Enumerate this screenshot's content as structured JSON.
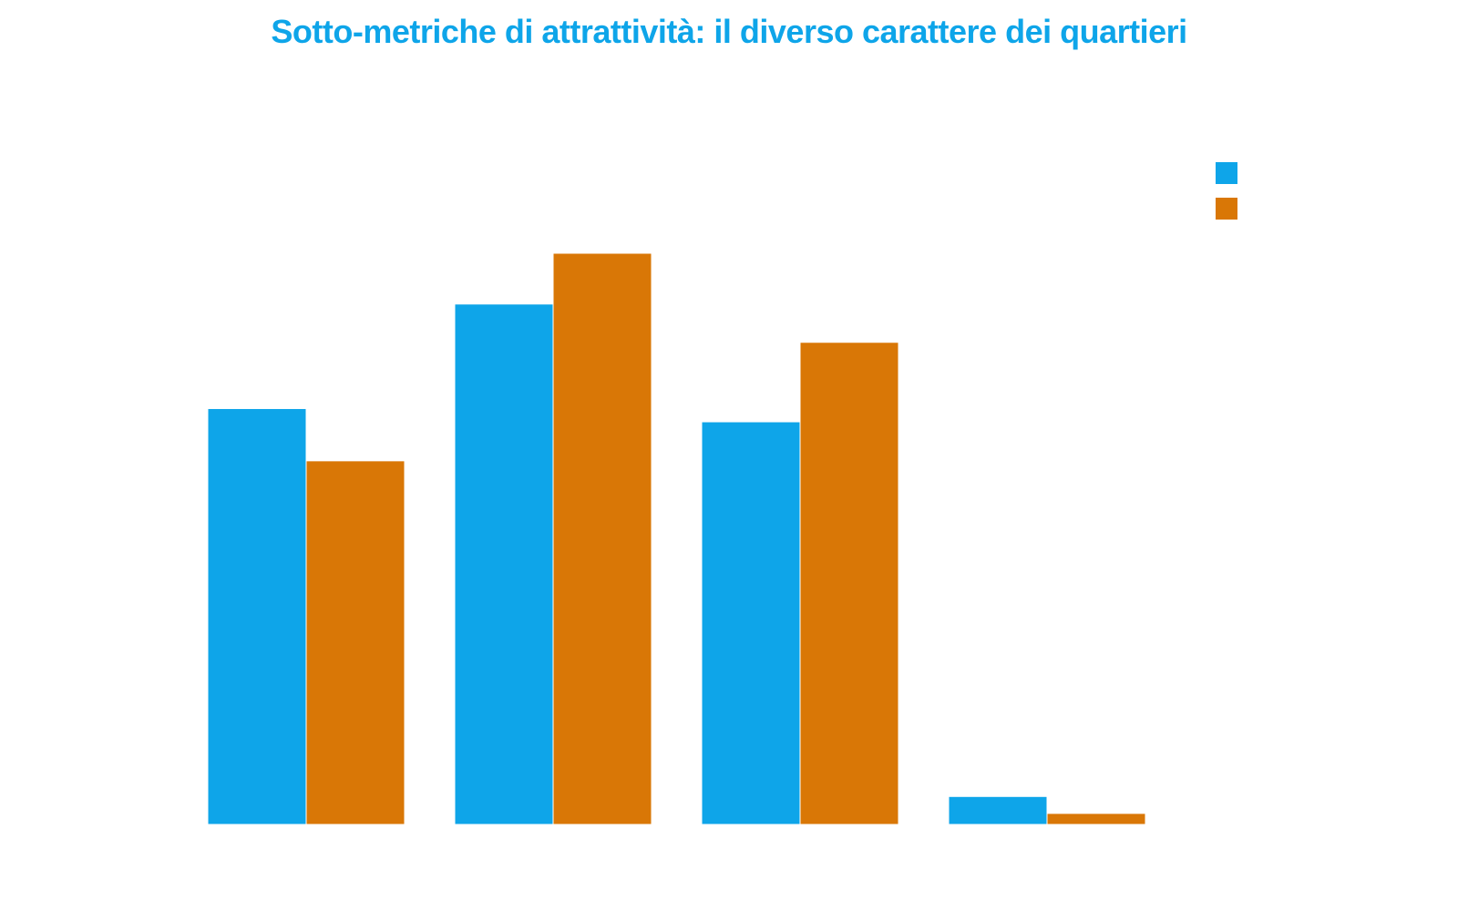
{
  "chart_data": {
    "type": "bar",
    "title": "Sotto-metriche di attrattività: il diverso carattere dei quartieri",
    "categories": [
      "",
      "",
      "",
      ""
    ],
    "series": [
      {
        "values": [
          0.565,
          0.707,
          0.547,
          0.038
        ],
        "color": "#0EA5E9"
      },
      {
        "values": [
          0.494,
          0.776,
          0.655,
          0.015
        ],
        "color": "#D97706"
      }
    ],
    "ylim": [
      0,
      1
    ],
    "grid": false,
    "legend": "top-right",
    "title_color": "#0EA5E9"
  }
}
